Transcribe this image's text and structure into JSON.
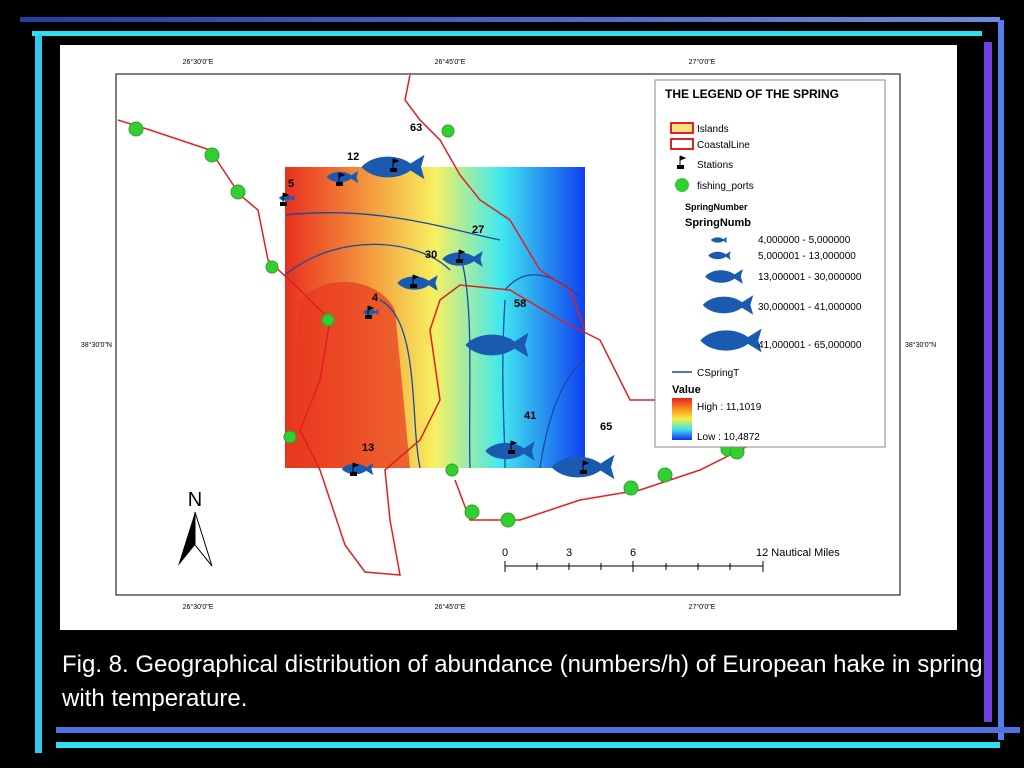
{
  "map": {
    "top_ticks": [
      "26°30'0\"E",
      "26°45'0\"E",
      "27°0'0\"E"
    ],
    "bottom_ticks": [
      "26°30'0\"E",
      "26°45'0\"E",
      "27°0'0\"E"
    ],
    "left_tick": "38°30'0\"N",
    "right_tick": "38°30'0\"N",
    "stations": [
      "63",
      "12",
      "5",
      "27",
      "30",
      "4",
      "58",
      "13",
      "41",
      "65"
    ],
    "legend": {
      "title": "THE LEGEND OF THE SPRING",
      "islands": "Islands",
      "coastline": "CoastalLine",
      "stations": "Stations",
      "ports": "fishing_ports",
      "spring_number": "SpringNumber",
      "spring_numb": "SpringNumb",
      "classes": [
        "4,000000 - 5,000000",
        "5,000001 - 13,000000",
        "13,000001 - 30,000000",
        "30,000001 - 41,000000",
        "41,000001 - 65,000000"
      ],
      "contour": "CSpringT",
      "value": "Value",
      "high": "High : 11,1019",
      "low": "Low : 10,4872"
    },
    "north": "N",
    "scale": {
      "ticks": [
        "0",
        "3",
        "6"
      ],
      "end": "12 Nautical Miles"
    }
  },
  "caption": "Fig. 8. Geographical distribution of abundance (numbers/h) of European hake in spring with temperature."
}
